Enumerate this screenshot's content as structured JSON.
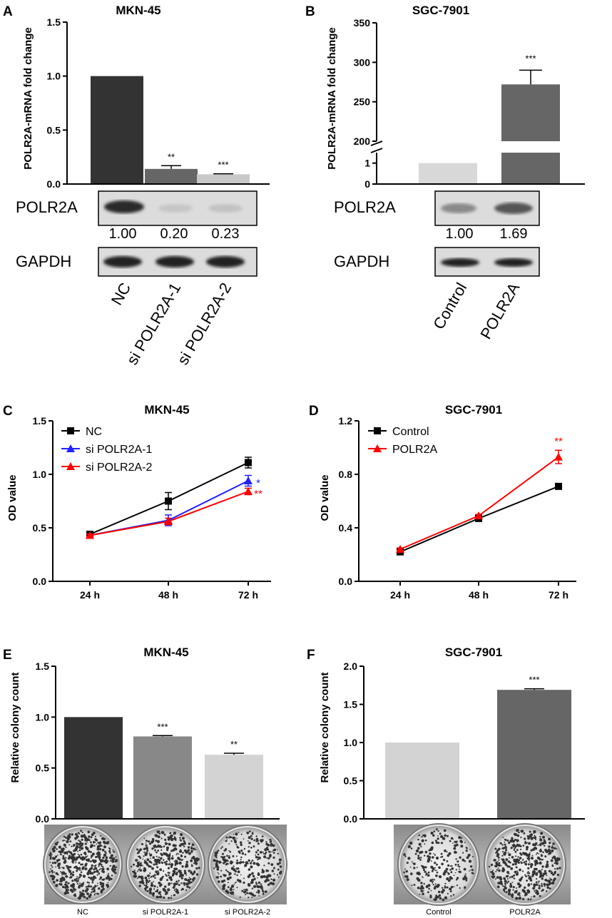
{
  "panels": {
    "A": "A",
    "B": "B",
    "C": "C",
    "D": "D",
    "E": "E",
    "F": "F"
  },
  "chart_data": [
    {
      "id": "A",
      "type": "bar",
      "title": "MKN-45",
      "ylabel": "POLR2A-mRNA fold change",
      "categories": [
        "NC",
        "si POLR2A-1",
        "si POLR2A-2"
      ],
      "values": [
        1.0,
        0.14,
        0.09
      ],
      "errors": [
        0,
        0.03,
        0.005
      ],
      "significance": [
        "",
        "**",
        "***"
      ],
      "ylim": [
        0,
        1.5
      ],
      "yticks": [
        "0.0",
        "0.5",
        "1.0",
        "1.5"
      ],
      "colors": [
        "#333333",
        "#666666",
        "#c8c8c8"
      ],
      "western_blot": {
        "label1": "POLR2A",
        "values": [
          "1.00",
          "0.20",
          "0.23"
        ],
        "label2": "GAPDH"
      }
    },
    {
      "id": "B",
      "type": "bar",
      "title": "SGC-7901",
      "ylabel": "POLR2A-mRNA fold change",
      "categories": [
        "Control",
        "POLR2A"
      ],
      "values": [
        1.0,
        272
      ],
      "errors": [
        0,
        18
      ],
      "significance": [
        "",
        "***"
      ],
      "broken_axis": {
        "lower": [
          0,
          1.5
        ],
        "upper": [
          200,
          350
        ]
      },
      "yticks_lower": [
        "0",
        "1"
      ],
      "yticks_upper": [
        "200",
        "250",
        "300",
        "350"
      ],
      "colors": [
        "#d8d8d8",
        "#666666"
      ],
      "western_blot": {
        "label1": "POLR2A",
        "values": [
          "1.00",
          "1.69"
        ],
        "label2": "GAPDH"
      }
    },
    {
      "id": "C",
      "type": "line",
      "title": "MKN-45",
      "ylabel": "OD value",
      "x": [
        "24 h",
        "48 h",
        "72 h"
      ],
      "ylim": [
        0,
        1.5
      ],
      "yticks": [
        "0.0",
        "0.5",
        "1.0",
        "1.5"
      ],
      "series": [
        {
          "name": "NC",
          "values": [
            0.44,
            0.75,
            1.11
          ],
          "errors": [
            0.01,
            0.08,
            0.05
          ],
          "color": "#000000",
          "marker": "square",
          "sig": ""
        },
        {
          "name": "si POLR2A-1",
          "values": [
            0.43,
            0.57,
            0.94
          ],
          "errors": [
            0.01,
            0.05,
            0.05
          ],
          "color": "#1f1fff",
          "marker": "triangle",
          "sig": "*"
        },
        {
          "name": "si POLR2A-2",
          "values": [
            0.43,
            0.56,
            0.84
          ],
          "errors": [
            0.01,
            0.03,
            0.03
          ],
          "color": "#ff0000",
          "marker": "triangle",
          "sig": "**"
        }
      ]
    },
    {
      "id": "D",
      "type": "line",
      "title": "SGC-7901",
      "ylabel": "OD value",
      "x": [
        "24 h",
        "48 h",
        "72 h"
      ],
      "ylim": [
        0,
        1.2
      ],
      "yticks": [
        "0.0",
        "0.4",
        "0.8",
        "1.2"
      ],
      "series": [
        {
          "name": "Control",
          "values": [
            0.22,
            0.47,
            0.71
          ],
          "errors": [
            0.01,
            0.02,
            0.02
          ],
          "color": "#000000",
          "marker": "square",
          "sig": ""
        },
        {
          "name": "POLR2A",
          "values": [
            0.24,
            0.49,
            0.93
          ],
          "errors": [
            0.01,
            0.01,
            0.05
          ],
          "color": "#ff0000",
          "marker": "triangle",
          "sig": "**"
        }
      ]
    },
    {
      "id": "E",
      "type": "bar",
      "title": "MKN-45",
      "ylabel": "Relative colony count",
      "categories": [
        "NC",
        "si POLR2A-1",
        "si POLR2A-2"
      ],
      "values": [
        1.0,
        0.81,
        0.63
      ],
      "errors": [
        0,
        0.008,
        0.015
      ],
      "significance": [
        "",
        "***",
        "**"
      ],
      "ylim": [
        0,
        1.5
      ],
      "yticks": [
        "0.0",
        "0.5",
        "1.0",
        "1.5"
      ],
      "colors": [
        "#333333",
        "#888888",
        "#d3d3d3"
      ],
      "plate_labels": [
        "NC",
        "si POLR2A-1",
        "si POLR2A-2"
      ]
    },
    {
      "id": "F",
      "type": "bar",
      "title": "SGC-7901",
      "ylabel": "Relative colony count",
      "categories": [
        "Control",
        "POLR2A"
      ],
      "values": [
        1.0,
        1.69
      ],
      "errors": [
        0,
        0.015
      ],
      "significance": [
        "",
        "***"
      ],
      "ylim": [
        0,
        2.0
      ],
      "yticks": [
        "0.0",
        "0.5",
        "1.0",
        "1.5",
        "2.0"
      ],
      "colors": [
        "#d3d3d3",
        "#666666"
      ],
      "plate_labels": [
        "Control",
        "POLR2A"
      ]
    }
  ]
}
